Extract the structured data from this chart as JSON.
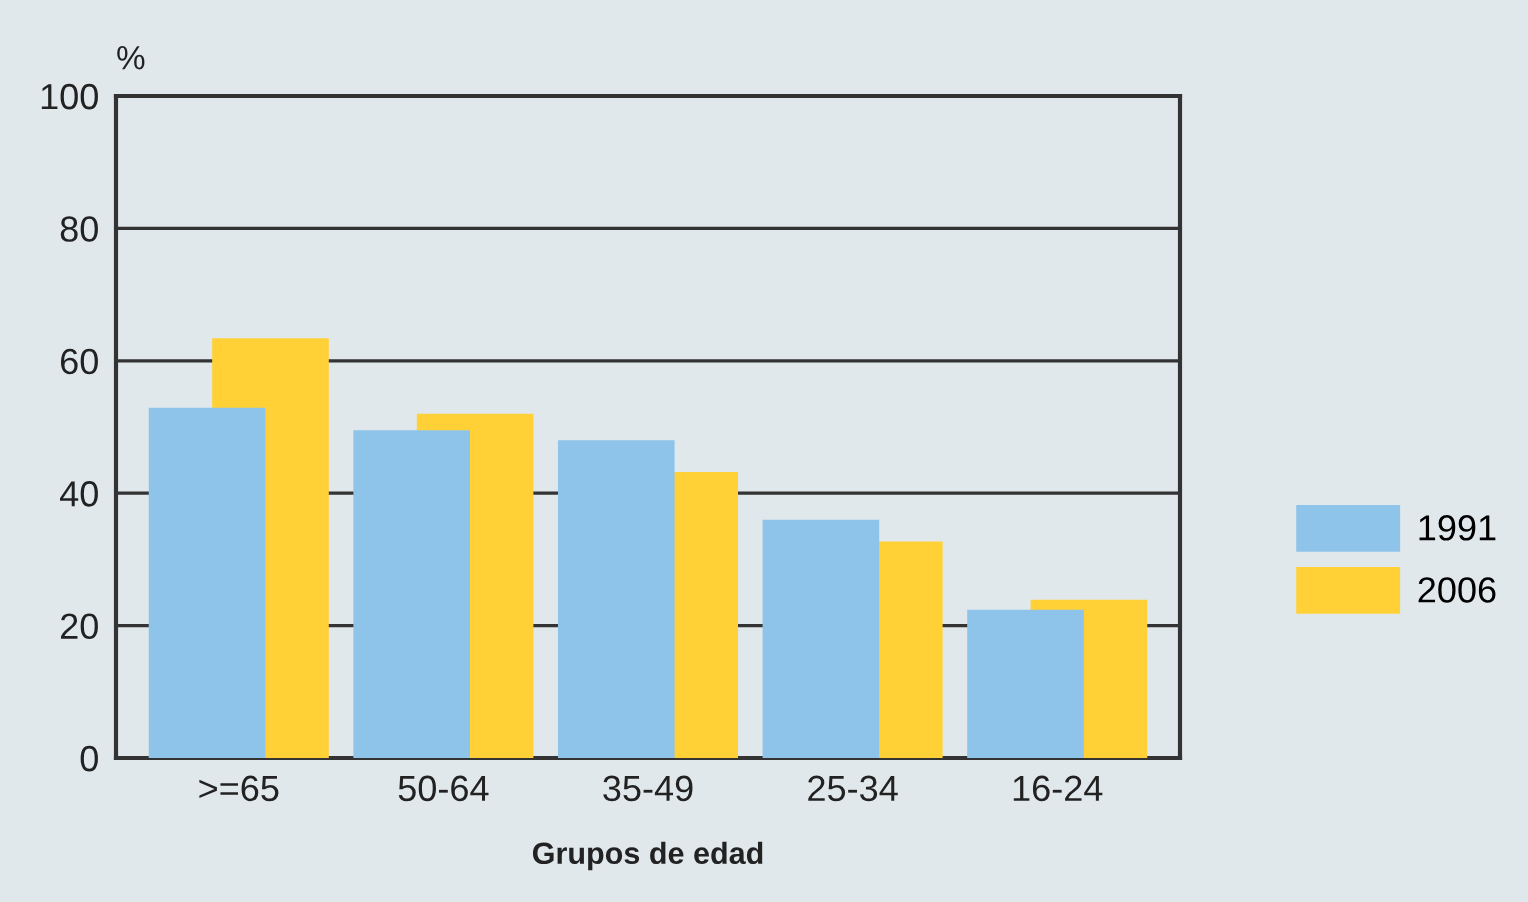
{
  "chart_data": {
    "type": "bar",
    "xlabel": "Grupos de edad",
    "ylabel": "%",
    "categories": [
      ">=65",
      "50-64",
      "35-49",
      "25-34",
      "16-24"
    ],
    "series": [
      {
        "name": "1991",
        "color": "#8ec4ea",
        "values": [
          52.9,
          49.5,
          48.0,
          36.0,
          22.4
        ]
      },
      {
        "name": "2006",
        "color": "#ffd137",
        "values": [
          63.4,
          52.0,
          43.2,
          32.7,
          23.9
        ]
      }
    ],
    "ylim": [
      0,
      100
    ],
    "yticks": [
      0,
      20,
      40,
      60,
      80,
      100
    ],
    "grid": "y",
    "legend": "right"
  }
}
